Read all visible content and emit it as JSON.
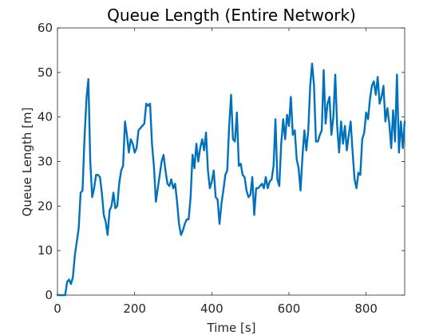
{
  "chart_data": {
    "type": "line",
    "title": "Queue Length (Entire Network)",
    "xlabel": "Time [s]",
    "ylabel": "Queue Length [m]",
    "xlim": [
      0,
      900
    ],
    "ylim": [
      0,
      60
    ],
    "xticks": [
      0,
      200,
      400,
      600,
      800
    ],
    "yticks": [
      0,
      10,
      20,
      30,
      40,
      50,
      60
    ],
    "grid": false,
    "box": true,
    "colors": {
      "series": "#0072BD",
      "axis": "#262626"
    },
    "series": [
      {
        "values": [
          [
            0,
            0
          ],
          [
            10,
            0
          ],
          [
            20,
            0
          ],
          [
            25,
            3
          ],
          [
            30,
            3.5
          ],
          [
            35,
            2.5
          ],
          [
            40,
            4
          ],
          [
            45,
            9
          ],
          [
            50,
            12
          ],
          [
            55,
            15
          ],
          [
            60,
            23
          ],
          [
            65,
            23.5
          ],
          [
            70,
            35
          ],
          [
            75,
            44
          ],
          [
            80,
            48.5
          ],
          [
            85,
            30
          ],
          [
            90,
            22
          ],
          [
            95,
            24
          ],
          [
            100,
            27
          ],
          [
            105,
            27
          ],
          [
            110,
            26.5
          ],
          [
            115,
            23
          ],
          [
            120,
            18
          ],
          [
            125,
            16.5
          ],
          [
            130,
            13.5
          ],
          [
            135,
            19
          ],
          [
            140,
            20
          ],
          [
            145,
            23
          ],
          [
            150,
            19.5
          ],
          [
            155,
            20
          ],
          [
            160,
            25
          ],
          [
            165,
            28
          ],
          [
            170,
            29
          ],
          [
            175,
            39
          ],
          [
            180,
            36
          ],
          [
            185,
            32
          ],
          [
            190,
            35
          ],
          [
            195,
            34
          ],
          [
            200,
            32
          ],
          [
            205,
            33
          ],
          [
            210,
            37
          ],
          [
            215,
            37.5
          ],
          [
            220,
            38
          ],
          [
            225,
            38.5
          ],
          [
            230,
            43
          ],
          [
            235,
            42.5
          ],
          [
            240,
            43
          ],
          [
            245,
            34
          ],
          [
            250,
            29
          ],
          [
            255,
            21
          ],
          [
            260,
            24
          ],
          [
            265,
            27
          ],
          [
            270,
            30
          ],
          [
            275,
            31.5
          ],
          [
            280,
            28
          ],
          [
            285,
            25
          ],
          [
            290,
            24.5
          ],
          [
            295,
            26
          ],
          [
            300,
            24
          ],
          [
            305,
            25
          ],
          [
            310,
            21
          ],
          [
            315,
            16
          ],
          [
            320,
            13.5
          ],
          [
            325,
            14.5
          ],
          [
            330,
            16
          ],
          [
            335,
            17
          ],
          [
            340,
            17
          ],
          [
            345,
            22
          ],
          [
            350,
            31.5
          ],
          [
            355,
            28.5
          ],
          [
            360,
            34
          ],
          [
            365,
            30
          ],
          [
            370,
            33
          ],
          [
            375,
            35
          ],
          [
            380,
            32.5
          ],
          [
            385,
            36.5
          ],
          [
            390,
            28
          ],
          [
            395,
            24
          ],
          [
            400,
            25.5
          ],
          [
            405,
            28
          ],
          [
            410,
            22
          ],
          [
            415,
            21.5
          ],
          [
            420,
            16
          ],
          [
            425,
            20.5
          ],
          [
            430,
            23.5
          ],
          [
            435,
            27
          ],
          [
            440,
            28
          ],
          [
            445,
            38
          ],
          [
            450,
            45
          ],
          [
            455,
            35
          ],
          [
            460,
            34.5
          ],
          [
            465,
            41
          ],
          [
            470,
            29
          ],
          [
            475,
            29.5
          ],
          [
            480,
            27
          ],
          [
            485,
            26.5
          ],
          [
            490,
            23.5
          ],
          [
            495,
            22
          ],
          [
            500,
            22.5
          ],
          [
            505,
            26.5
          ],
          [
            510,
            18
          ],
          [
            515,
            24
          ],
          [
            520,
            24
          ],
          [
            525,
            24.5
          ],
          [
            530,
            25
          ],
          [
            535,
            24
          ],
          [
            540,
            26.5
          ],
          [
            545,
            24
          ],
          [
            550,
            25.5
          ],
          [
            555,
            26
          ],
          [
            560,
            29
          ],
          [
            565,
            39.5
          ],
          [
            570,
            26
          ],
          [
            575,
            24.5
          ],
          [
            580,
            34
          ],
          [
            585,
            39.5
          ],
          [
            590,
            35
          ],
          [
            595,
            40.5
          ],
          [
            600,
            38
          ],
          [
            605,
            44.5
          ],
          [
            610,
            36
          ],
          [
            615,
            37
          ],
          [
            620,
            30.5
          ],
          [
            625,
            28.5
          ],
          [
            630,
            23.5
          ],
          [
            635,
            31
          ],
          [
            640,
            37
          ],
          [
            645,
            32.5
          ],
          [
            650,
            37
          ],
          [
            655,
            47
          ],
          [
            660,
            52
          ],
          [
            665,
            47
          ],
          [
            670,
            34.5
          ],
          [
            675,
            34.5
          ],
          [
            680,
            36
          ],
          [
            685,
            37
          ],
          [
            690,
            50.5
          ],
          [
            695,
            38.5
          ],
          [
            700,
            43
          ],
          [
            705,
            44.5
          ],
          [
            710,
            36
          ],
          [
            715,
            40
          ],
          [
            720,
            49.5
          ],
          [
            725,
            38
          ],
          [
            730,
            32
          ],
          [
            735,
            39
          ],
          [
            740,
            34
          ],
          [
            745,
            38
          ],
          [
            750,
            32.5
          ],
          [
            755,
            36
          ],
          [
            760,
            39
          ],
          [
            765,
            32
          ],
          [
            770,
            26
          ],
          [
            775,
            24
          ],
          [
            780,
            27.5
          ],
          [
            785,
            27
          ],
          [
            790,
            35
          ],
          [
            795,
            36.5
          ],
          [
            800,
            41
          ],
          [
            805,
            39.5
          ],
          [
            810,
            44
          ],
          [
            815,
            47
          ],
          [
            820,
            48
          ],
          [
            825,
            45
          ],
          [
            830,
            49
          ],
          [
            835,
            43
          ],
          [
            840,
            44.5
          ],
          [
            845,
            47
          ],
          [
            850,
            39
          ],
          [
            855,
            42
          ],
          [
            860,
            38.5
          ],
          [
            865,
            33
          ],
          [
            870,
            41.5
          ],
          [
            875,
            34.5
          ],
          [
            880,
            49.5
          ],
          [
            885,
            32
          ],
          [
            890,
            39
          ],
          [
            895,
            33
          ],
          [
            900,
            39
          ]
        ]
      }
    ]
  }
}
